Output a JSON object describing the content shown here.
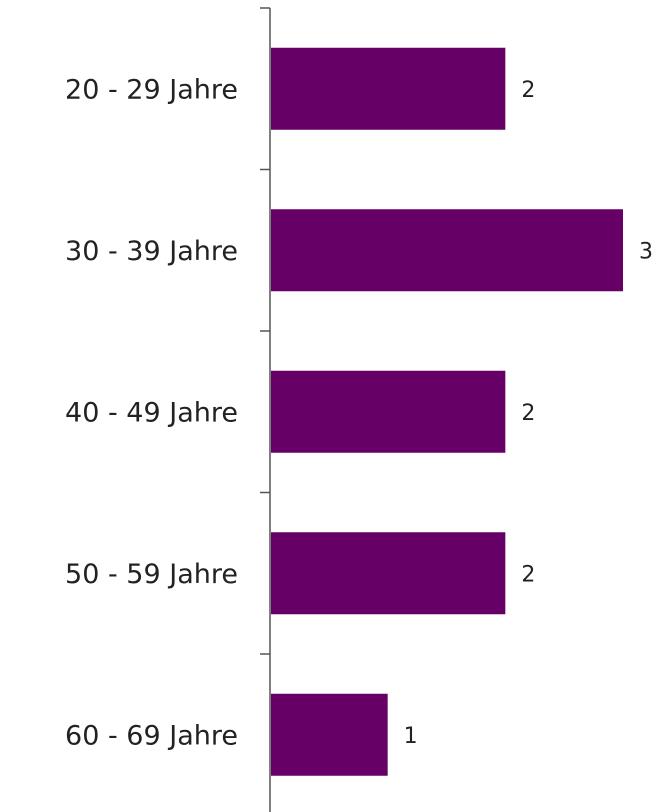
{
  "chart_data": {
    "type": "barh",
    "categories": [
      "20 - 29 Jahre",
      "30 - 39 Jahre",
      "40 - 49 Jahre",
      "50 - 59 Jahre",
      "60 - 69 Jahre"
    ],
    "values": [
      2,
      3,
      2,
      2,
      1
    ],
    "color": "#660066"
  }
}
